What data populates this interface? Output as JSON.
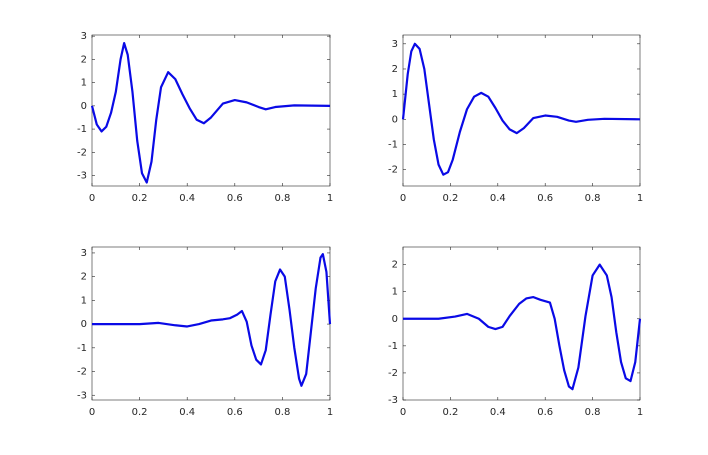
{
  "chart_data": [
    {
      "type": "line",
      "color": "#0a0ae6",
      "x": [
        0,
        0.02,
        0.04,
        0.06,
        0.08,
        0.1,
        0.12,
        0.135,
        0.15,
        0.17,
        0.19,
        0.21,
        0.23,
        0.25,
        0.27,
        0.29,
        0.32,
        0.35,
        0.38,
        0.41,
        0.44,
        0.47,
        0.5,
        0.55,
        0.6,
        0.65,
        0.7,
        0.73,
        0.77,
        0.85,
        1
      ],
      "values": [
        0,
        -0.8,
        -1.1,
        -0.9,
        -0.3,
        0.6,
        2.0,
        2.7,
        2.2,
        0.6,
        -1.5,
        -2.9,
        -3.3,
        -2.4,
        -0.6,
        0.8,
        1.45,
        1.15,
        0.5,
        -0.1,
        -0.6,
        -0.75,
        -0.5,
        0.1,
        0.25,
        0.15,
        -0.05,
        -0.15,
        -0.05,
        0.02,
        0
      ],
      "xlim": [
        0,
        1
      ],
      "xticks": [
        0,
        0.2,
        0.4,
        0.6,
        0.8,
        1
      ],
      "ylim": [
        -3.45,
        3.05
      ],
      "yticks": [
        -3,
        -2,
        -1,
        0,
        1,
        2,
        3
      ]
    },
    {
      "type": "line",
      "color": "#0a0ae6",
      "x": [
        0,
        0.02,
        0.035,
        0.05,
        0.07,
        0.09,
        0.11,
        0.13,
        0.15,
        0.17,
        0.19,
        0.21,
        0.24,
        0.27,
        0.3,
        0.33,
        0.36,
        0.39,
        0.42,
        0.45,
        0.48,
        0.51,
        0.55,
        0.6,
        0.65,
        0.7,
        0.73,
        0.78,
        0.85,
        1
      ],
      "values": [
        0,
        1.8,
        2.7,
        3.0,
        2.8,
        2.0,
        0.6,
        -0.8,
        -1.8,
        -2.2,
        -2.1,
        -1.6,
        -0.5,
        0.4,
        0.9,
        1.05,
        0.9,
        0.45,
        -0.05,
        -0.4,
        -0.55,
        -0.35,
        0.05,
        0.15,
        0.1,
        -0.05,
        -0.1,
        -0.02,
        0.02,
        0
      ],
      "xlim": [
        0,
        1
      ],
      "xticks": [
        0,
        0.2,
        0.4,
        0.6,
        0.8,
        1
      ],
      "ylim": [
        -2.65,
        3.35
      ],
      "yticks": [
        -2,
        -1,
        0,
        1,
        2,
        3
      ]
    },
    {
      "type": "line",
      "color": "#0a0ae6",
      "x": [
        0,
        0.2,
        0.28,
        0.35,
        0.4,
        0.45,
        0.5,
        0.55,
        0.58,
        0.61,
        0.63,
        0.65,
        0.67,
        0.69,
        0.71,
        0.73,
        0.75,
        0.77,
        0.79,
        0.81,
        0.83,
        0.85,
        0.87,
        0.88,
        0.9,
        0.92,
        0.94,
        0.96,
        0.97,
        0.985,
        1
      ],
      "values": [
        0,
        0,
        0.05,
        -0.05,
        -0.1,
        0,
        0.15,
        0.2,
        0.25,
        0.4,
        0.55,
        0.1,
        -0.9,
        -1.5,
        -1.7,
        -1.1,
        0.4,
        1.8,
        2.3,
        2.0,
        0.6,
        -1.0,
        -2.3,
        -2.6,
        -2.1,
        -0.3,
        1.5,
        2.8,
        2.95,
        2.2,
        0
      ],
      "xlim": [
        0,
        1
      ],
      "xticks": [
        0,
        0.2,
        0.4,
        0.6,
        0.8,
        1
      ],
      "ylim": [
        -3.2,
        3.25
      ],
      "yticks": [
        -3,
        -2,
        -1,
        0,
        1,
        2,
        3
      ]
    },
    {
      "type": "line",
      "color": "#0a0ae6",
      "x": [
        0,
        0.15,
        0.22,
        0.27,
        0.32,
        0.36,
        0.39,
        0.42,
        0.45,
        0.49,
        0.52,
        0.55,
        0.58,
        0.62,
        0.64,
        0.66,
        0.68,
        0.7,
        0.715,
        0.74,
        0.77,
        0.8,
        0.83,
        0.86,
        0.88,
        0.9,
        0.92,
        0.94,
        0.96,
        0.98,
        1
      ],
      "values": [
        0,
        0,
        0.08,
        0.18,
        0,
        -0.3,
        -0.38,
        -0.3,
        0.1,
        0.55,
        0.75,
        0.8,
        0.7,
        0.6,
        0.0,
        -1.0,
        -1.9,
        -2.5,
        -2.6,
        -1.8,
        0.1,
        1.6,
        2.0,
        1.6,
        0.8,
        -0.5,
        -1.6,
        -2.2,
        -2.3,
        -1.6,
        0
      ],
      "xlim": [
        0,
        1
      ],
      "xticks": [
        0,
        0.2,
        0.4,
        0.6,
        0.8,
        1
      ],
      "ylim": [
        -3,
        2.65
      ],
      "yticks": [
        -3,
        -2,
        -1,
        0,
        1,
        2
      ]
    }
  ]
}
